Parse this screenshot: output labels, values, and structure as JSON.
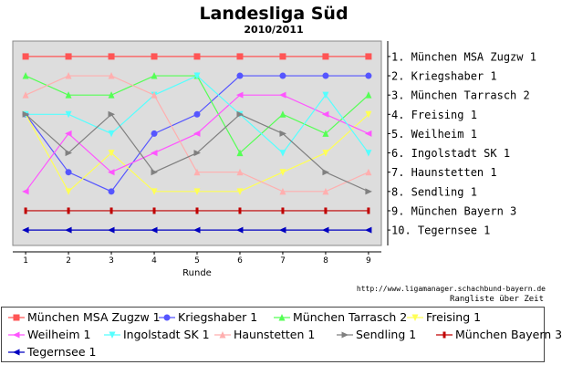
{
  "header": {
    "title": "Landesliga Süd",
    "subtitle": "2010/2011"
  },
  "footer": {
    "source_url": "http://www.ligamanager.schachbund-bayern.de",
    "caption": "Rangliste über Zeit"
  },
  "chart_data": {
    "type": "line",
    "title": "Landesliga Süd",
    "subtitle": "2010/2011",
    "xlabel": "Runde",
    "ylabel": "",
    "x": [
      1,
      2,
      3,
      4,
      5,
      6,
      7,
      8,
      9
    ],
    "xlim": [
      0.7,
      9.3
    ],
    "ylim": [
      0.2,
      10.8
    ],
    "y_reversed": true,
    "grid": false,
    "right_axis_labels": [
      "1. München MSA Zugzw 1",
      "2. Kriegshaber 1",
      "3. München Tarrasch 2",
      "4. Freising 1",
      "5. Weilheim 1",
      "6. Ingolstadt SK 1",
      "7. Haunstetten 1",
      "8. Sendling 1",
      "9. München Bayern 3",
      "10. Tegernsee 1"
    ],
    "legend_position": "bottom",
    "series": [
      {
        "name": "München MSA Zugzw 1",
        "color": "#ff5555",
        "marker": "square",
        "values": [
          1,
          1,
          1,
          1,
          1,
          1,
          1,
          1,
          1
        ]
      },
      {
        "name": "Kriegshaber 1",
        "color": "#5555ff",
        "marker": "circle",
        "values": [
          4,
          7,
          8,
          5,
          4,
          2,
          2,
          2,
          2
        ]
      },
      {
        "name": "München Tarrasch 2",
        "color": "#55ff55",
        "marker": "triangle-up",
        "values": [
          2,
          3,
          3,
          2,
          2,
          6,
          4,
          5,
          3
        ]
      },
      {
        "name": "Freising 1",
        "color": "#ffff55",
        "marker": "triangle-down",
        "values": [
          4,
          8,
          6,
          8,
          8,
          8,
          7,
          6,
          4
        ]
      },
      {
        "name": "Weilheim 1",
        "color": "#ff55ff",
        "marker": "triangle-left",
        "values": [
          8,
          5,
          7,
          6,
          5,
          3,
          3,
          4,
          5
        ]
      },
      {
        "name": "Ingolstadt SK 1",
        "color": "#55ffff",
        "marker": "triangle-down",
        "values": [
          4,
          4,
          5,
          3,
          2,
          4,
          6,
          3,
          6
        ]
      },
      {
        "name": "Haunstetten 1",
        "color": "#ffafaf",
        "marker": "triangle-up",
        "values": [
          3,
          2,
          2,
          3,
          7,
          7,
          8,
          8,
          7
        ]
      },
      {
        "name": "Sendling 1",
        "color": "#808080",
        "marker": "triangle-right",
        "values": [
          4,
          6,
          4,
          7,
          6,
          4,
          5,
          7,
          8
        ]
      },
      {
        "name": "München Bayern 3",
        "color": "#c00000",
        "marker": "bar",
        "values": [
          9,
          9,
          9,
          9,
          9,
          9,
          9,
          9,
          9
        ]
      },
      {
        "name": "Tegernsee 1",
        "color": "#0000c0",
        "marker": "triangle-left",
        "values": [
          10,
          10,
          10,
          10,
          10,
          10,
          10,
          10,
          10
        ]
      }
    ]
  }
}
